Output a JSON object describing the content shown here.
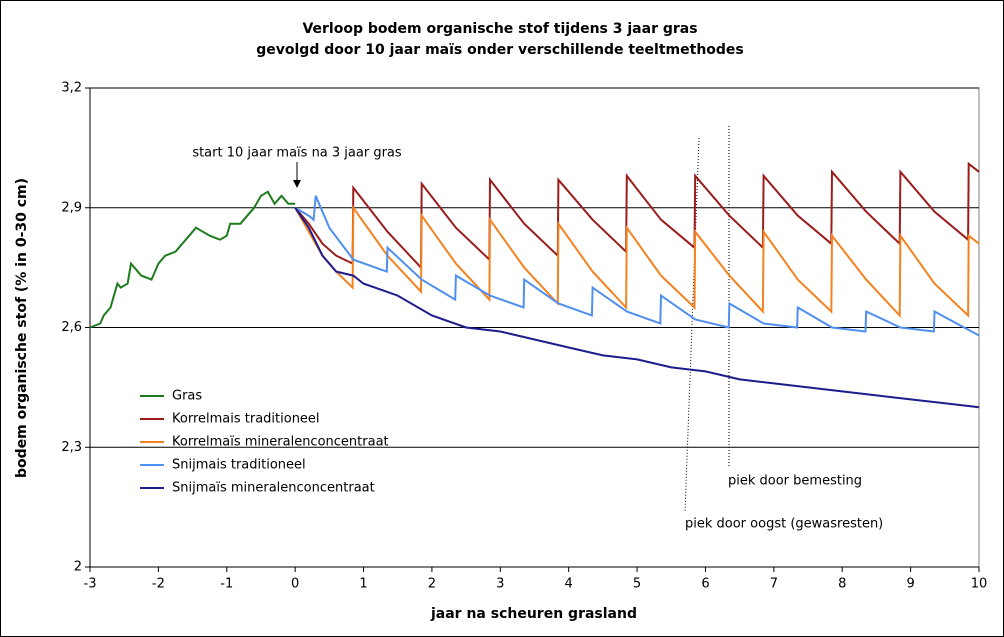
{
  "chart_data": {
    "type": "line",
    "title": [
      "Verloop bodem organische stof tijdens 3 jaar gras",
      "gevolgd door 10 jaar maïs onder verschillende teeltmethodes"
    ],
    "x_label": "jaar na scheuren grasland",
    "y_label": "bodem organische stof (% in 0-30 cm)",
    "xlim": [
      -3,
      10
    ],
    "ylim": [
      2,
      3.2
    ],
    "xticks": [
      -3,
      -2,
      -1,
      0,
      1,
      2,
      3,
      4,
      5,
      6,
      7,
      8,
      9,
      10
    ],
    "yticks": [
      {
        "value": 2,
        "label": "2"
      },
      {
        "value": 2.3,
        "label": "2,3"
      },
      {
        "value": 2.6,
        "label": "2,6"
      },
      {
        "value": 2.9,
        "label": "2,9"
      },
      {
        "value": 3.2,
        "label": "3,2"
      }
    ],
    "grid": true,
    "legend": "lower left",
    "annotations": [
      "start 10 jaar maïs na 3 jaar gras",
      "piek door bemesting",
      "piek door oogst (gewasresten)"
    ],
    "series": [
      {
        "name": "Gras",
        "color": "#1e7b1e",
        "x": [
          -3,
          -2.85,
          -2.8,
          -2.7,
          -2.6,
          -2.55,
          -2.45,
          -2.4,
          -2.25,
          -2.1,
          -2.0,
          -1.9,
          -1.75,
          -1.65,
          -1.55,
          -1.45,
          -1.35,
          -1.25,
          -1.1,
          -1.0,
          -0.95,
          -0.8,
          -0.7,
          -0.6,
          -0.5,
          -0.4,
          -0.3,
          -0.2,
          -0.1,
          0
        ],
        "values": [
          2.6,
          2.61,
          2.63,
          2.65,
          2.71,
          2.7,
          2.71,
          2.76,
          2.73,
          2.72,
          2.76,
          2.78,
          2.79,
          2.81,
          2.83,
          2.85,
          2.84,
          2.83,
          2.82,
          2.83,
          2.86,
          2.86,
          2.88,
          2.9,
          2.93,
          2.94,
          2.91,
          2.93,
          2.91,
          2.91
        ]
      },
      {
        "name": "Korrelmais traditioneel",
        "color": "#9b1c1c",
        "x": [
          0,
          0.2,
          0.4,
          0.6,
          0.84,
          0.85,
          1.35,
          1.84,
          1.85,
          2.35,
          2.84,
          2.85,
          3.35,
          3.84,
          3.85,
          4.35,
          4.84,
          4.85,
          5.35,
          5.84,
          5.85,
          6.35,
          6.84,
          6.85,
          7.35,
          7.84,
          7.85,
          8.35,
          8.84,
          8.85,
          9.35,
          9.84,
          9.85,
          10
        ],
        "values": [
          2.9,
          2.86,
          2.81,
          2.78,
          2.76,
          2.95,
          2.84,
          2.75,
          2.96,
          2.85,
          2.77,
          2.97,
          2.86,
          2.78,
          2.97,
          2.87,
          2.79,
          2.98,
          2.87,
          2.8,
          2.98,
          2.88,
          2.8,
          2.98,
          2.88,
          2.81,
          2.99,
          2.89,
          2.81,
          2.99,
          2.89,
          2.82,
          3.01,
          2.99
        ]
      },
      {
        "name": "Korrelmaïs mineralenconcentraat",
        "color": "#f58220",
        "x": [
          0,
          0.2,
          0.4,
          0.6,
          0.84,
          0.85,
          1.35,
          1.84,
          1.85,
          2.35,
          2.84,
          2.85,
          3.35,
          3.84,
          3.85,
          4.35,
          4.84,
          4.85,
          5.35,
          5.84,
          5.85,
          6.35,
          6.84,
          6.85,
          7.35,
          7.84,
          7.85,
          8.35,
          8.84,
          8.85,
          9.35,
          9.84,
          9.85,
          10
        ],
        "values": [
          2.9,
          2.84,
          2.78,
          2.74,
          2.7,
          2.9,
          2.78,
          2.69,
          2.88,
          2.76,
          2.67,
          2.87,
          2.75,
          2.66,
          2.86,
          2.74,
          2.65,
          2.85,
          2.73,
          2.65,
          2.84,
          2.73,
          2.64,
          2.84,
          2.72,
          2.64,
          2.83,
          2.72,
          2.63,
          2.83,
          2.71,
          2.63,
          2.83,
          2.81
        ]
      },
      {
        "name": "Snijmais traditioneel",
        "color": "#4f8ff0",
        "x": [
          0,
          0.2,
          0.27,
          0.3,
          0.5,
          0.85,
          1.34,
          1.35,
          1.85,
          2.34,
          2.35,
          2.85,
          3.34,
          3.35,
          3.85,
          4.34,
          4.35,
          4.85,
          5.34,
          5.35,
          5.85,
          6.34,
          6.35,
          6.85,
          7.34,
          7.35,
          7.85,
          8.34,
          8.35,
          8.85,
          9.34,
          9.35,
          10
        ],
        "values": [
          2.9,
          2.88,
          2.87,
          2.93,
          2.85,
          2.77,
          2.74,
          2.8,
          2.72,
          2.67,
          2.73,
          2.68,
          2.65,
          2.72,
          2.66,
          2.63,
          2.7,
          2.64,
          2.61,
          2.68,
          2.62,
          2.6,
          2.66,
          2.61,
          2.6,
          2.65,
          2.6,
          2.59,
          2.64,
          2.6,
          2.59,
          2.64,
          2.58
        ]
      },
      {
        "name": "Snijmaïs mineralenconcentraat",
        "color": "#1c1c8c",
        "x": [
          0,
          0.2,
          0.4,
          0.6,
          0.85,
          1,
          1.5,
          2,
          2.5,
          3,
          3.5,
          4,
          4.5,
          5,
          5.5,
          6,
          6.5,
          7,
          7.5,
          8,
          8.5,
          9,
          9.5,
          10
        ],
        "values": [
          2.9,
          2.85,
          2.78,
          2.74,
          2.73,
          2.71,
          2.68,
          2.63,
          2.6,
          2.59,
          2.57,
          2.55,
          2.53,
          2.52,
          2.5,
          2.49,
          2.47,
          2.46,
          2.45,
          2.44,
          2.43,
          2.42,
          2.41,
          2.4
        ]
      }
    ]
  }
}
